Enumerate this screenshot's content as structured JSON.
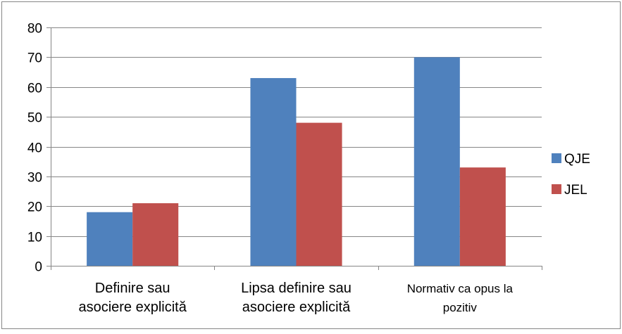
{
  "chart_data": {
    "type": "bar",
    "title": "",
    "xlabel": "",
    "ylabel": "",
    "categories": [
      [
        "Definire sau",
        "asociere explicită"
      ],
      [
        "Lipsa definire sau",
        "asociere explicită"
      ],
      [
        "Normativ ca opus la",
        "pozitiv"
      ]
    ],
    "series": [
      {
        "name": "QJE",
        "values": [
          18,
          63,
          70
        ],
        "color": "#4f81bd"
      },
      {
        "name": "JEL",
        "values": [
          21,
          48,
          33
        ],
        "color": "#c0504d"
      }
    ],
    "ylim": [
      0,
      80
    ],
    "yticks": [
      "0",
      "10",
      "20",
      "30",
      "40",
      "50",
      "60",
      "70",
      "80"
    ],
    "grid": true,
    "legend_position": "right",
    "colors": {
      "grid": "#868686",
      "axis": "#868686",
      "frame": "#868686"
    }
  }
}
